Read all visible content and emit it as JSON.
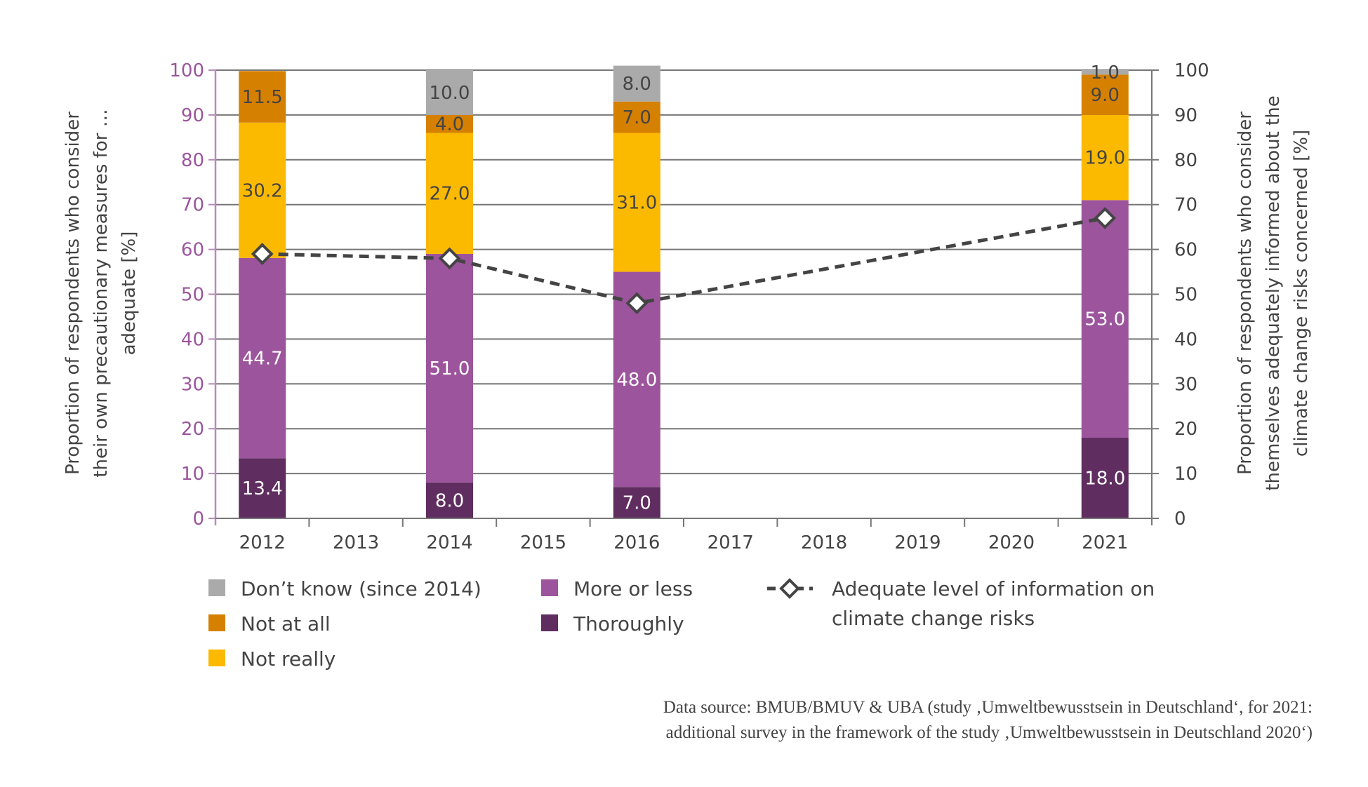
{
  "chart_data": {
    "type": "bar",
    "stacked": true,
    "categories": [
      "2012",
      "2013",
      "2014",
      "2015",
      "2016",
      "2017",
      "2018",
      "2019",
      "2020",
      "2021"
    ],
    "series": [
      {
        "name": "Thoroughly",
        "color": "#5f2d5f",
        "label_color": "#ffffff",
        "values": [
          13.4,
          null,
          8.0,
          null,
          7.0,
          null,
          null,
          null,
          null,
          18.0
        ]
      },
      {
        "name": "More or less",
        "color": "#9c559c",
        "label_color": "#ffffff",
        "values": [
          44.7,
          null,
          51.0,
          null,
          48.0,
          null,
          null,
          null,
          null,
          53.0
        ]
      },
      {
        "name": "Not really",
        "color": "#fbb900",
        "label_color": "#444444",
        "values": [
          30.2,
          null,
          27.0,
          null,
          31.0,
          null,
          null,
          null,
          null,
          19.0
        ]
      },
      {
        "name": "Not at all",
        "color": "#d68000",
        "label_color": "#444444",
        "values": [
          11.5,
          null,
          4.0,
          null,
          7.0,
          null,
          null,
          null,
          null,
          9.0
        ]
      },
      {
        "name": "Don’t know (since 2014)",
        "color": "#aaaaaa",
        "label_color": "#444444",
        "values": [
          null,
          null,
          10.0,
          null,
          8.0,
          null,
          null,
          null,
          null,
          1.0
        ]
      }
    ],
    "line_series": {
      "name_line1": "Adequate level of information on",
      "name_line2": "climate change risks",
      "axis": "right",
      "style": "dashed with open diamond markers",
      "color": "#444444",
      "values": [
        59,
        null,
        58,
        null,
        48,
        null,
        null,
        null,
        null,
        67
      ]
    },
    "left_axis": {
      "label_lines": [
        "Proportion of respondents who consider",
        "their own precautionary measures for …",
        "adequate [%]"
      ],
      "ylim": [
        0,
        100
      ],
      "ticks": [
        "0",
        "10",
        "20",
        "30",
        "40",
        "50",
        "60",
        "70",
        "80",
        "90",
        "100"
      ],
      "tick_color": "#9c559c"
    },
    "right_axis": {
      "label_lines": [
        "Proportion of respondents who consider",
        "themselves adequately informed about the",
        "climate change risks concerned [%]"
      ],
      "ylim": [
        0,
        100
      ],
      "ticks": [
        "0",
        "10",
        "20",
        "30",
        "40",
        "50",
        "60",
        "70",
        "80",
        "90",
        "100"
      ]
    },
    "grid": true,
    "legend_order": [
      "Don’t know (since 2014)",
      "Not at all",
      "Not really",
      "More or less",
      "Thoroughly"
    ],
    "legend_placement": "bottom"
  },
  "source": {
    "line1": "Data source: BMUB/BMUV & UBA (study ‚Umweltbewusstsein in Deutschland‘, for 2021:",
    "line2": "additional survey in the framework of the study ‚Umweltbewusstsein in Deutschland 2020‘)"
  }
}
